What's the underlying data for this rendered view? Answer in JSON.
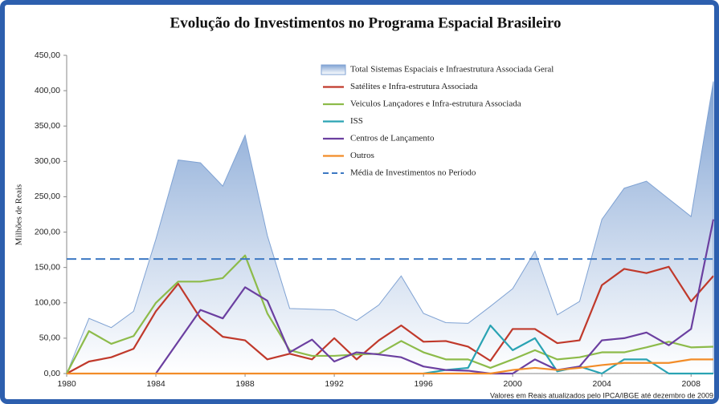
{
  "chart_data": {
    "type": "line",
    "title": "Evolução do Investimentos no Programa Espacial Brasileiro",
    "y_label": "Milhões de Reais",
    "note": "Valores em Reais atualizados pelo IPCA/IBGE até dezembro de 2009",
    "x": [
      1980,
      1981,
      1982,
      1983,
      1984,
      1985,
      1986,
      1987,
      1988,
      1989,
      1990,
      1991,
      1992,
      1993,
      1994,
      1995,
      1996,
      1997,
      1998,
      1999,
      2000,
      2001,
      2002,
      2003,
      2004,
      2005,
      2006,
      2007,
      2008,
      2009
    ],
    "xlim": [
      1980,
      2009
    ],
    "xticks": [
      1980,
      1984,
      1988,
      1992,
      1996,
      2000,
      2004,
      2008
    ],
    "ylim": [
      0,
      450
    ],
    "yticks": [
      {
        "value": 0,
        "label": "0,00"
      },
      {
        "value": 50,
        "label": "50,00"
      },
      {
        "value": 100,
        "label": "100,00"
      },
      {
        "value": 150,
        "label": "150,00"
      },
      {
        "value": 200,
        "label": "200,00"
      },
      {
        "value": 250,
        "label": "250,00"
      },
      {
        "value": 300,
        "label": "300,00"
      },
      {
        "value": 350,
        "label": "350,00"
      },
      {
        "value": 400,
        "label": "400,00"
      },
      {
        "value": 450,
        "label": "450,00"
      }
    ],
    "series": [
      {
        "name": "Total  Sistemas Espaciais e Infraestrutura Associada Geral",
        "style": "area",
        "color": "#7fa2d3",
        "values": [
          0,
          78,
          65,
          88,
          190,
          302,
          298,
          265,
          337,
          195,
          92,
          91,
          90,
          75,
          97,
          138,
          85,
          72,
          71,
          95,
          120,
          173,
          83,
          102,
          218,
          262,
          272,
          247,
          222,
          413
        ]
      },
      {
        "name": "Satélites e Infra-estrutura Associada",
        "style": "line",
        "color": "#c0392b",
        "values": [
          0,
          17,
          23,
          35,
          88,
          127,
          78,
          52,
          47,
          20,
          28,
          20,
          50,
          20,
          47,
          68,
          45,
          46,
          38,
          18,
          63,
          63,
          43,
          47,
          125,
          148,
          142,
          151,
          102,
          138
        ]
      },
      {
        "name": "Veiculos Lançadores e Infra-estrutura Associada",
        "style": "line",
        "color": "#8dbb4a",
        "values": [
          0,
          60,
          42,
          53,
          100,
          130,
          130,
          135,
          167,
          85,
          33,
          25,
          25,
          27,
          28,
          46,
          30,
          20,
          20,
          8,
          20,
          33,
          20,
          23,
          30,
          30,
          37,
          45,
          37,
          38
        ]
      },
      {
        "name": "ISS",
        "style": "line",
        "color": "#2aa3b3",
        "values": [
          null,
          null,
          null,
          null,
          null,
          null,
          null,
          null,
          null,
          null,
          null,
          null,
          null,
          null,
          null,
          null,
          0,
          5,
          8,
          68,
          33,
          50,
          3,
          10,
          0,
          20,
          20,
          0,
          0,
          0
        ]
      },
      {
        "name": "Centros de Lançamento",
        "style": "line",
        "color": "#6b3fa0",
        "values": [
          null,
          null,
          null,
          null,
          0,
          45,
          90,
          78,
          122,
          103,
          30,
          48,
          17,
          30,
          27,
          23,
          10,
          5,
          4,
          0,
          0,
          20,
          5,
          10,
          47,
          50,
          58,
          40,
          63,
          218
        ]
      },
      {
        "name": "Outros",
        "style": "line",
        "color": "#f28c28",
        "values": [
          0,
          0,
          0,
          0,
          0,
          0,
          0,
          0,
          0,
          0,
          0,
          0,
          0,
          0,
          0,
          0,
          0,
          0,
          0,
          0,
          5,
          8,
          5,
          8,
          12,
          15,
          15,
          15,
          20,
          20
        ]
      }
    ],
    "reference_line": {
      "name": "Média de Investimentos no Período",
      "value": 162,
      "color": "#3c78c3"
    }
  }
}
